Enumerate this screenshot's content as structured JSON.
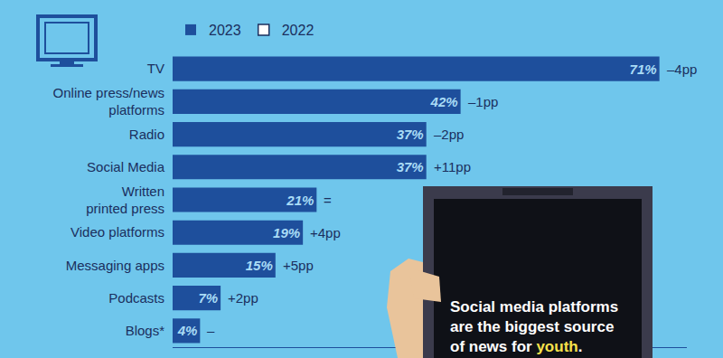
{
  "chart_data": {
    "type": "bar",
    "orientation": "horizontal",
    "categories": [
      "TV",
      "Online press/news platforms",
      "Radio",
      "Social Media",
      "Written printed press",
      "Video platforms",
      "Messaging apps",
      "Podcasts",
      "Blogs*"
    ],
    "series": [
      {
        "name": "2023",
        "color": "#1e4f9c",
        "values": [
          71,
          42,
          37,
          37,
          21,
          19,
          15,
          7,
          4
        ],
        "value_labels": [
          "71%",
          "42%",
          "37%",
          "37%",
          "21%",
          "19%",
          "15%",
          "7%",
          "4%"
        ]
      },
      {
        "name": "2022",
        "color": "#ffffff",
        "values": [
          null,
          null,
          null,
          null,
          null,
          null,
          null,
          null,
          null
        ]
      }
    ],
    "change_labels": [
      "–4pp",
      "–1pp",
      "–2pp",
      "+11pp",
      "=",
      "+4pp",
      "+5pp",
      "+2pp",
      "–"
    ],
    "xlim": [
      0,
      75
    ],
    "xticks": [],
    "grid": false,
    "data_labels": true,
    "tick_labels": "y",
    "legend": "top left",
    "callout": {
      "lines": [
        "Social media platforms",
        "are the biggest source",
        "of news for youth."
      ],
      "highlight": "youth"
    }
  }
}
